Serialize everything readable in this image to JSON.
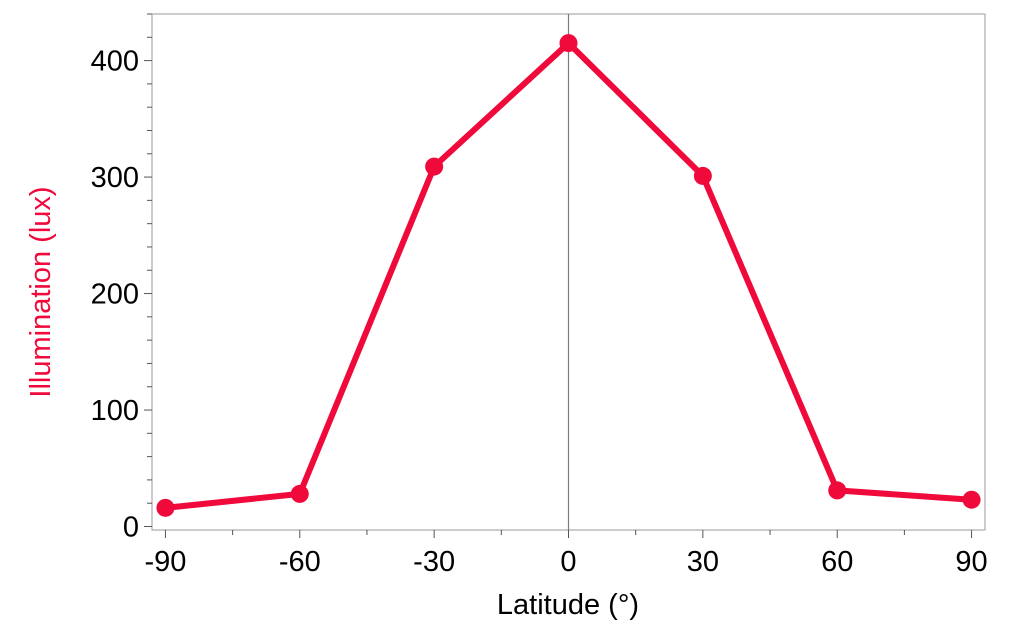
{
  "chart_data": {
    "type": "line",
    "xlabel": "Latitude (°)",
    "ylabel": "Illumination (lux)",
    "x": [
      -90,
      -60,
      -30,
      0,
      30,
      60,
      90
    ],
    "series": [
      {
        "values": [
          16,
          28,
          309,
          415,
          301,
          31,
          23
        ],
        "color": "#f0093b"
      }
    ],
    "xlim": [
      -93,
      93
    ],
    "ylim": [
      -3,
      440
    ],
    "xticks": [
      -90,
      -60,
      -30,
      0,
      30,
      60,
      90
    ],
    "yticks": [
      0,
      100,
      200,
      300,
      400
    ],
    "xtick_labels": [
      "-90",
      "-60",
      "-30",
      "0",
      "30",
      "60",
      "90"
    ],
    "ytick_labels": [
      "0",
      "100",
      "200",
      "300",
      "400"
    ],
    "grid": false,
    "zero_line": true,
    "ylabel_color": "#f0093b"
  }
}
